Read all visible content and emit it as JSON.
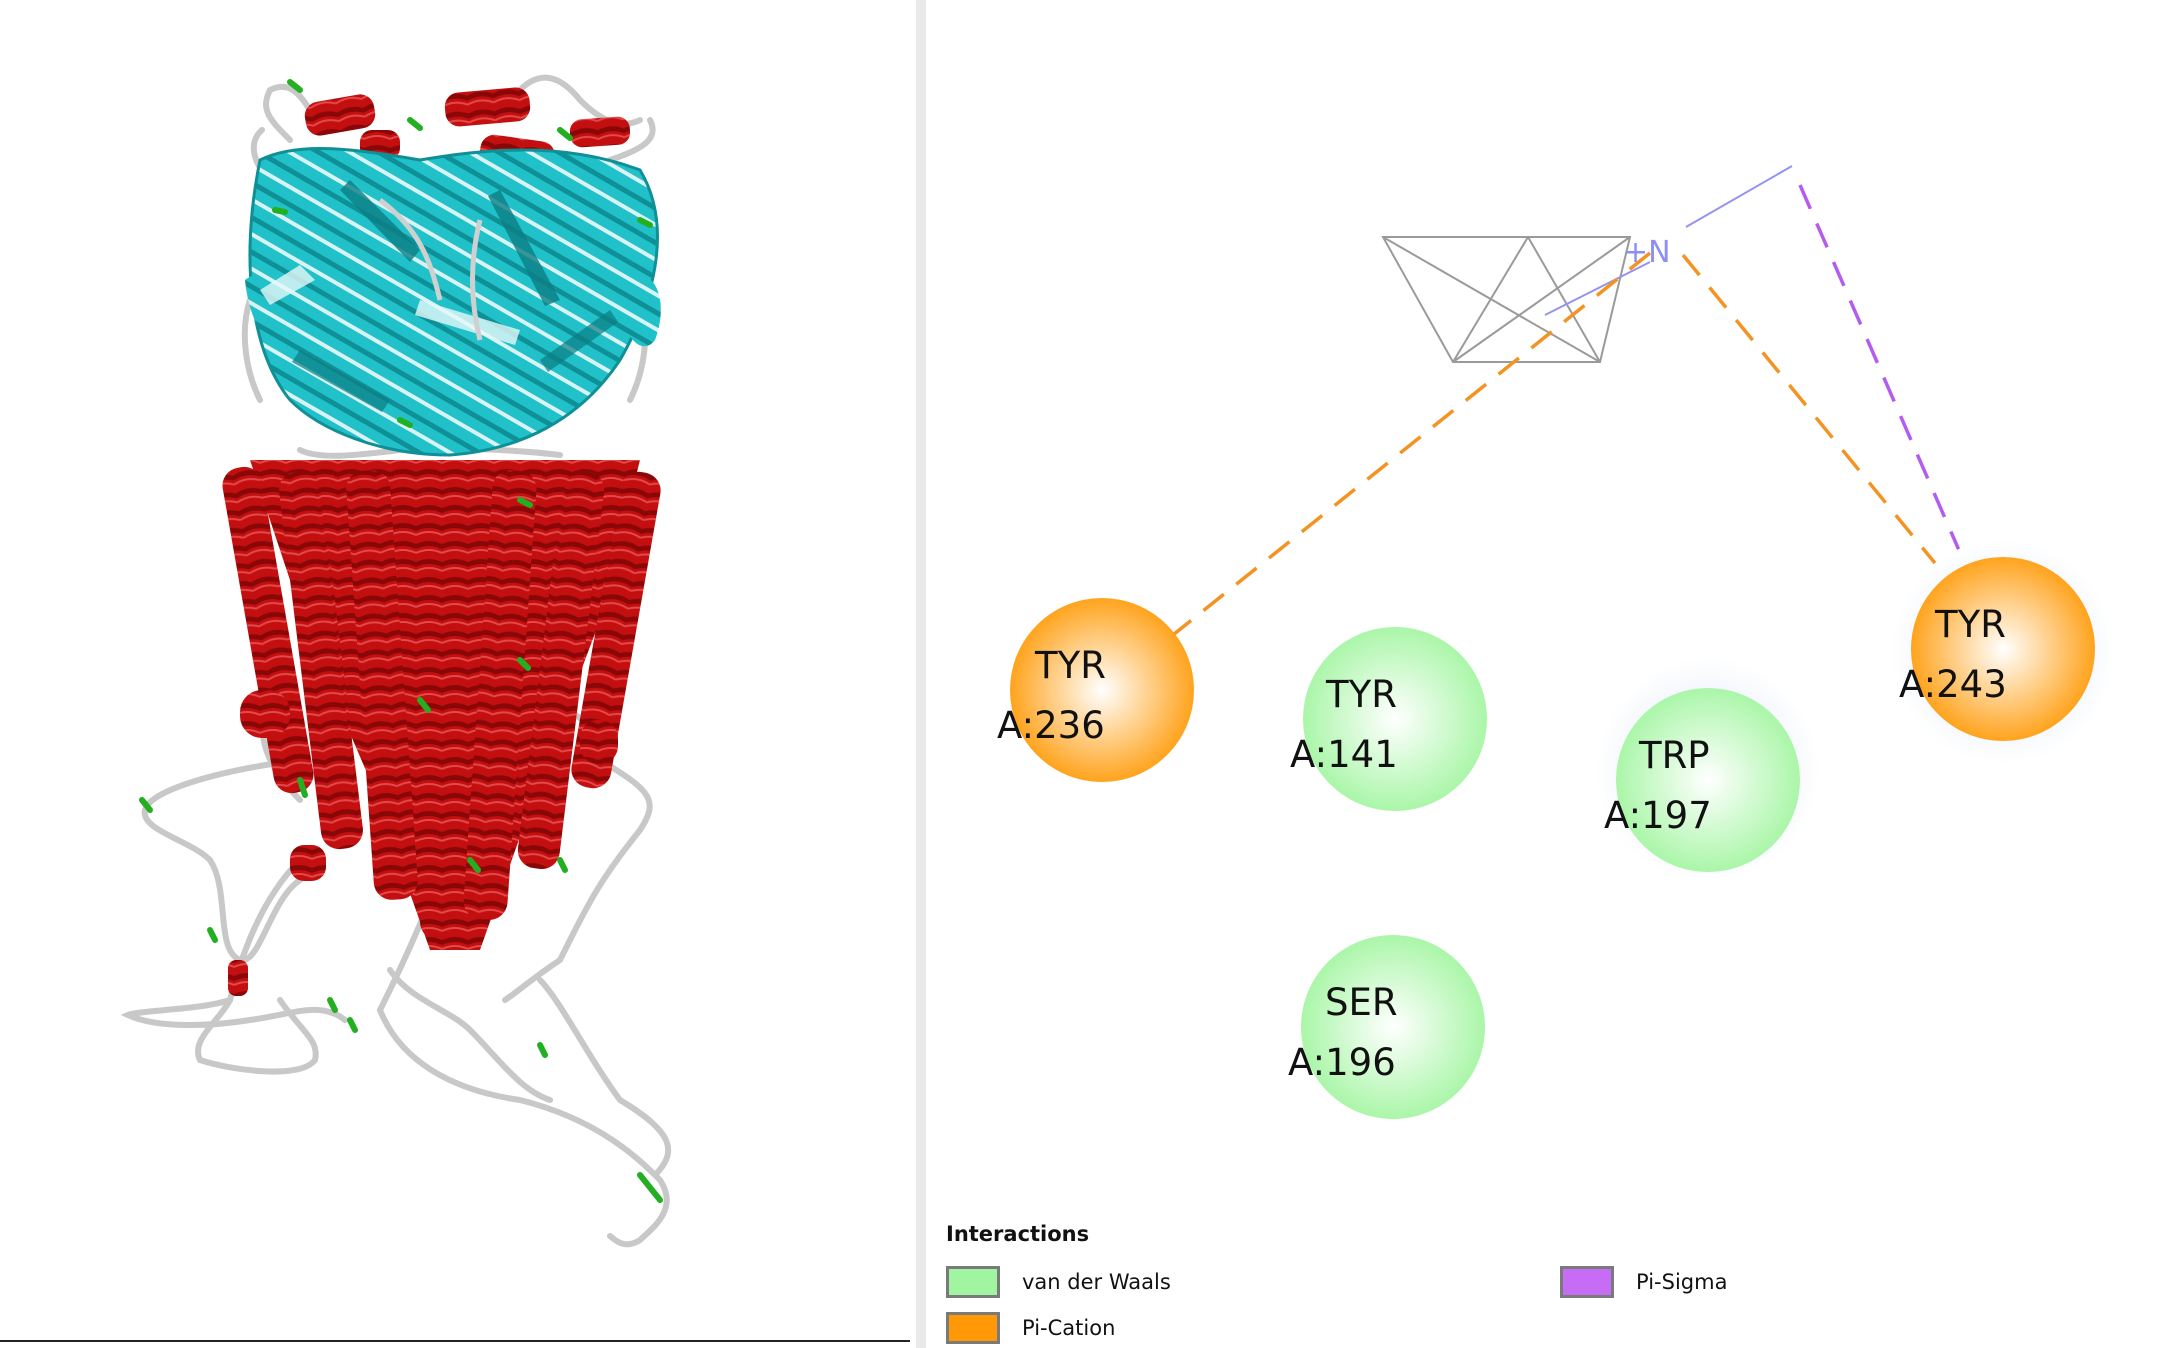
{
  "residues": [
    {
      "name": "TYR",
      "id": "A:236",
      "type": "pi-cation"
    },
    {
      "name": "TYR",
      "id": "A:141",
      "type": "van-der-waals"
    },
    {
      "name": "TRP",
      "id": "A:197",
      "type": "van-der-waals"
    },
    {
      "name": "TYR",
      "id": "A:243",
      "type": "pi-cation"
    },
    {
      "name": "SER",
      "id": "A:196",
      "type": "van-der-waals"
    }
  ],
  "ligand": {
    "atom_label": "+N"
  },
  "legend": {
    "title": "Interactions",
    "items": [
      {
        "label": "van der Waals",
        "color": "#a2f5a0"
      },
      {
        "label": "Pi-Cation",
        "color": "#ff9a06"
      },
      {
        "label": "Pi-Sigma",
        "color": "#c66cf5"
      }
    ]
  },
  "colors": {
    "helix": "#c40f10",
    "sheet": "#20c1c9",
    "coil": "#c8c8c8",
    "turn": "#22b022",
    "pi_cation_line": "#f39323",
    "pi_sigma_line": "#b45cf0",
    "ligand_line": "#9a9a9a",
    "nitrogen": "#8e8ef7"
  }
}
